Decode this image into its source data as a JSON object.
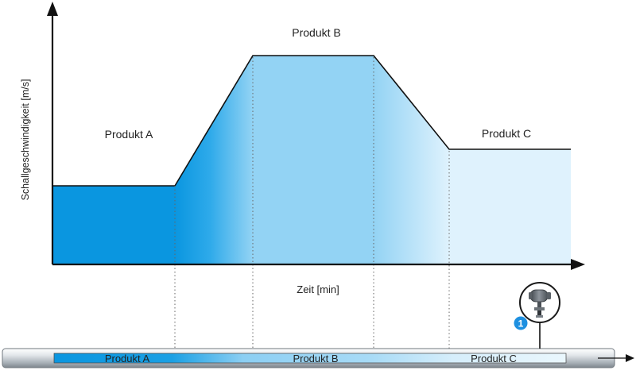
{
  "chart": {
    "ylabel": "Schallgeschwindigkeit [m/s]",
    "xlabel": "Zeit [min]",
    "labels": {
      "product_a": "Produkt A",
      "product_b": "Produkt B",
      "product_c": "Produkt C"
    }
  },
  "pipe": {
    "labels": {
      "product_a": "Produkt A",
      "product_b": "Produkt B",
      "product_c": "Produkt C"
    },
    "sensor_badge": "1"
  },
  "colors": {
    "product_a": "#0a9ae2",
    "product_b": "#92d2f4",
    "product_c": "#dbf0fc",
    "outline": "#111111",
    "badge": "#1e90e0"
  },
  "icons": {
    "sensor": "ultrasonic-sensor-icon"
  }
}
